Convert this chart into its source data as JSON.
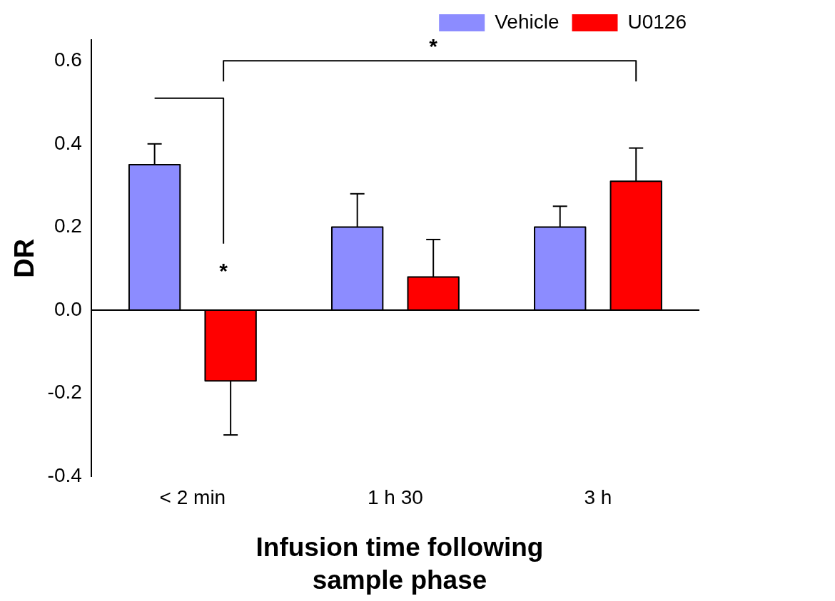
{
  "chart_data": {
    "type": "bar",
    "xlabel": "Infusion time following sample phase",
    "ylabel": "DR",
    "categories": [
      "< 2 min",
      "1 h 30",
      "3 h"
    ],
    "series": [
      {
        "name": "Vehicle",
        "color": "#8c8cff",
        "values": [
          0.35,
          0.2,
          0.2
        ],
        "errors": [
          [
            0.35,
            0.4
          ],
          [
            0.2,
            0.28
          ],
          [
            0.2,
            0.25
          ]
        ]
      },
      {
        "name": "U0126",
        "color": "#ff0000",
        "values": [
          -0.17,
          0.08,
          0.31
        ],
        "errors": [
          [
            -0.3,
            -0.17
          ],
          [
            0.08,
            0.17
          ],
          [
            0.31,
            0.39
          ]
        ]
      }
    ],
    "ylim": [
      -0.4,
      0.65
    ],
    "yticks": [
      -0.4,
      -0.2,
      {
        "value": 0,
        "label": "0.0"
      },
      0.2,
      0.4,
      0.6
    ],
    "ref_lines": [
      {
        "axis": "y",
        "value": 0
      }
    ],
    "annotations": [
      "*",
      "*"
    ],
    "legend": "top right",
    "grid": false
  }
}
